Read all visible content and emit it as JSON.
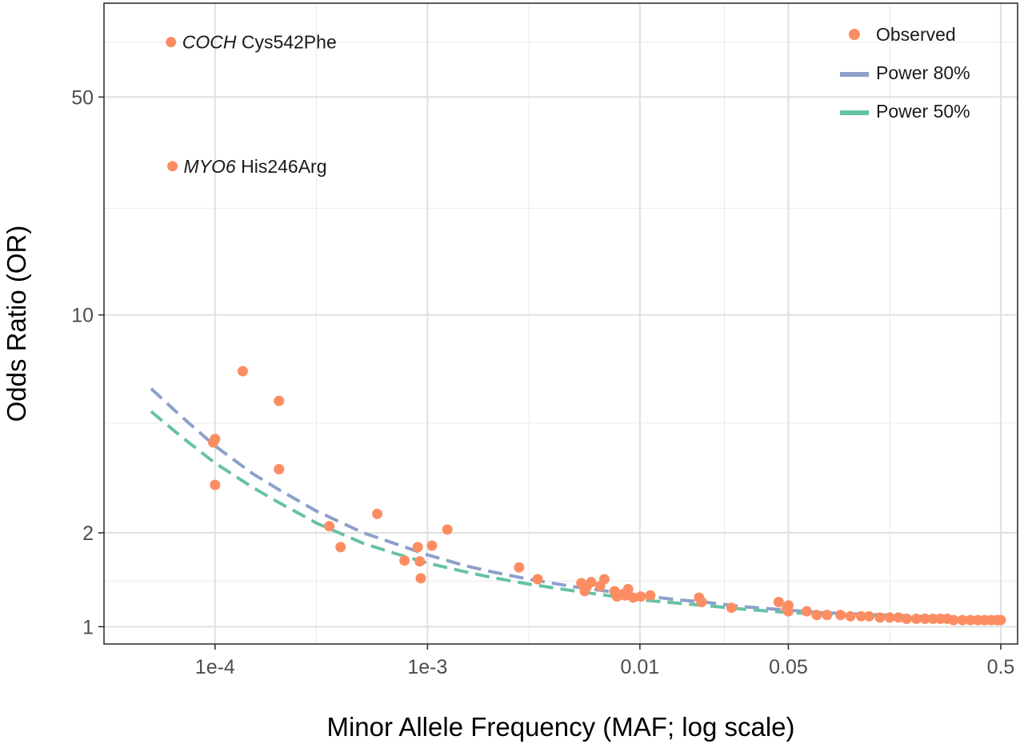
{
  "chart_data": {
    "type": "scatter",
    "xlabel": "Minor Allele Frequency (MAF; log scale)",
    "ylabel": "Odds Ratio (OR)",
    "x_scale": "log",
    "y_scale": "log",
    "xlim": [
      3e-05,
      0.6
    ],
    "ylim": [
      0.88,
      100
    ],
    "x_ticks": [
      {
        "value": 0.0001,
        "label": "1e-4"
      },
      {
        "value": 0.001,
        "label": "1e-3"
      },
      {
        "value": 0.01,
        "label": "0.01"
      },
      {
        "value": 0.05,
        "label": "0.05"
      },
      {
        "value": 0.5,
        "label": "0.5"
      }
    ],
    "x_minor_grid": [
      0.0003,
      0.003,
      0.025,
      0.15
    ],
    "y_ticks": [
      {
        "value": 1,
        "label": "1"
      },
      {
        "value": 2,
        "label": "2"
      },
      {
        "value": 10,
        "label": "10"
      },
      {
        "value": 50,
        "label": "50"
      }
    ],
    "y_minor_grid": [
      1.4,
      4.5,
      22,
      75
    ],
    "grid": true,
    "legend_position": "top-right",
    "legend": [
      {
        "label": "Observed",
        "kind": "point",
        "color": "#FC8D62"
      },
      {
        "label": "Power 80%",
        "kind": "dashed-line",
        "color": "#8DA0CB"
      },
      {
        "label": "Power 50%",
        "kind": "dashed-line",
        "color": "#66C2A5"
      }
    ],
    "annotations": [
      {
        "gene": "COCH",
        "variant": "Cys542Phe",
        "x": 6.2e-05,
        "y": 75
      },
      {
        "gene": "MYO6",
        "variant": "His246Arg",
        "x": 6.3e-05,
        "y": 30
      }
    ],
    "series": [
      {
        "name": "Observed",
        "kind": "scatter",
        "color": "#FC8D62",
        "points": [
          [
            6.2e-05,
            75
          ],
          [
            6.3e-05,
            30
          ],
          [
            0.000135,
            6.6
          ],
          [
            0.0002,
            5.3
          ],
          [
            0.0001,
            4.0
          ],
          [
            9.8e-05,
            3.9
          ],
          [
            0.0002,
            3.2
          ],
          [
            0.0001,
            2.85
          ],
          [
            0.000345,
            2.1
          ],
          [
            0.00058,
            2.3
          ],
          [
            0.00039,
            1.8
          ],
          [
            0.00124,
            2.05
          ],
          [
            0.00105,
            1.82
          ],
          [
            0.0009,
            1.8
          ],
          [
            0.00078,
            1.63
          ],
          [
            0.00092,
            1.62
          ],
          [
            0.00093,
            1.43
          ],
          [
            0.0027,
            1.55
          ],
          [
            0.0033,
            1.42
          ],
          [
            0.0053,
            1.38
          ],
          [
            0.0056,
            1.34
          ],
          [
            0.0059,
            1.39
          ],
          [
            0.0055,
            1.3
          ],
          [
            0.0068,
            1.42
          ],
          [
            0.0065,
            1.35
          ],
          [
            0.0076,
            1.3
          ],
          [
            0.0088,
            1.32
          ],
          [
            0.0083,
            1.27
          ],
          [
            0.0093,
            1.24
          ],
          [
            0.0078,
            1.25
          ],
          [
            0.0101,
            1.25
          ],
          [
            0.0112,
            1.26
          ],
          [
            0.0085,
            1.26
          ],
          [
            0.019,
            1.24
          ],
          [
            0.0195,
            1.2
          ],
          [
            0.027,
            1.15
          ],
          [
            0.045,
            1.2
          ],
          [
            0.049,
            1.14
          ],
          [
            0.05,
            1.17
          ],
          [
            0.05,
            1.12
          ],
          [
            0.061,
            1.12
          ],
          [
            0.068,
            1.09
          ],
          [
            0.076,
            1.09
          ],
          [
            0.088,
            1.09
          ],
          [
            0.098,
            1.08
          ],
          [
            0.11,
            1.08
          ],
          [
            0.12,
            1.08
          ],
          [
            0.135,
            1.07
          ],
          [
            0.15,
            1.07
          ],
          [
            0.165,
            1.07
          ],
          [
            0.18,
            1.06
          ],
          [
            0.2,
            1.06
          ],
          [
            0.22,
            1.06
          ],
          [
            0.24,
            1.06
          ],
          [
            0.26,
            1.06
          ],
          [
            0.28,
            1.06
          ],
          [
            0.3,
            1.05
          ],
          [
            0.33,
            1.05
          ],
          [
            0.36,
            1.05
          ],
          [
            0.39,
            1.05
          ],
          [
            0.42,
            1.05
          ],
          [
            0.45,
            1.05
          ],
          [
            0.48,
            1.05
          ],
          [
            0.5,
            1.05
          ]
        ]
      },
      {
        "name": "Power 80%",
        "kind": "line",
        "color": "#8DA0CB",
        "dash": true,
        "points": [
          [
            5e-05,
            5.8
          ],
          [
            7e-05,
            4.7
          ],
          [
            0.0001,
            3.8
          ],
          [
            0.00015,
            3.1
          ],
          [
            0.0002,
            2.75
          ],
          [
            0.0003,
            2.35
          ],
          [
            0.0005,
            2.0
          ],
          [
            0.0007,
            1.85
          ],
          [
            0.001,
            1.7
          ],
          [
            0.0015,
            1.57
          ],
          [
            0.002,
            1.5
          ],
          [
            0.003,
            1.42
          ],
          [
            0.005,
            1.34
          ],
          [
            0.007,
            1.3
          ],
          [
            0.01,
            1.26
          ],
          [
            0.015,
            1.22
          ],
          [
            0.02,
            1.2
          ],
          [
            0.03,
            1.16
          ],
          [
            0.05,
            1.13
          ],
          [
            0.07,
            1.11
          ],
          [
            0.1,
            1.1
          ],
          [
            0.2,
            1.08
          ],
          [
            0.3,
            1.07
          ],
          [
            0.5,
            1.06
          ]
        ]
      },
      {
        "name": "Power 50%",
        "kind": "line",
        "color": "#66C2A5",
        "dash": true,
        "points": [
          [
            5e-05,
            4.9
          ],
          [
            7e-05,
            4.05
          ],
          [
            0.0001,
            3.35
          ],
          [
            0.00015,
            2.8
          ],
          [
            0.0002,
            2.5
          ],
          [
            0.0003,
            2.15
          ],
          [
            0.0005,
            1.85
          ],
          [
            0.0007,
            1.72
          ],
          [
            0.001,
            1.6
          ],
          [
            0.0015,
            1.5
          ],
          [
            0.002,
            1.44
          ],
          [
            0.003,
            1.37
          ],
          [
            0.005,
            1.3
          ],
          [
            0.007,
            1.26
          ],
          [
            0.01,
            1.22
          ],
          [
            0.015,
            1.19
          ],
          [
            0.02,
            1.17
          ],
          [
            0.03,
            1.14
          ],
          [
            0.05,
            1.11
          ],
          [
            0.07,
            1.1
          ],
          [
            0.1,
            1.09
          ],
          [
            0.2,
            1.07
          ],
          [
            0.3,
            1.06
          ],
          [
            0.5,
            1.05
          ]
        ]
      }
    ]
  }
}
